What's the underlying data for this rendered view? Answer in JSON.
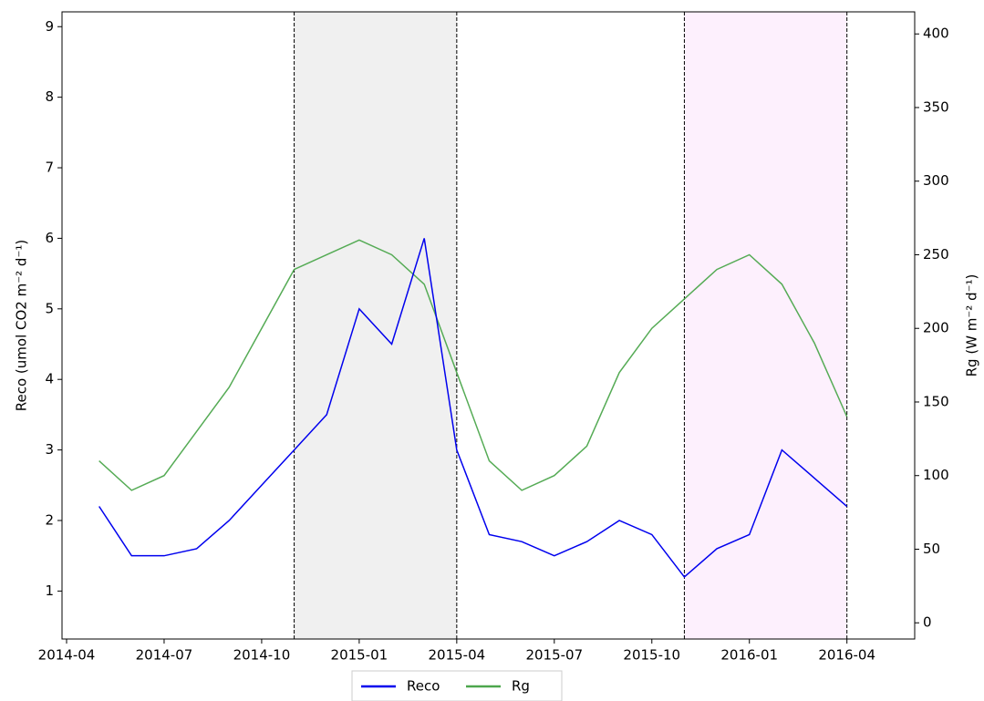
{
  "chart_data": {
    "type": "line",
    "x": [
      "2014-05",
      "2014-06",
      "2014-07",
      "2014-08",
      "2014-09",
      "2014-10",
      "2014-11",
      "2014-12",
      "2015-01",
      "2015-02",
      "2015-03",
      "2015-04",
      "2015-05",
      "2015-06",
      "2015-07",
      "2015-08",
      "2015-09",
      "2015-10",
      "2015-11",
      "2015-12",
      "2016-01",
      "2016-02",
      "2016-03",
      "2016-04"
    ],
    "series": [
      {
        "name": "Reco",
        "color": "#0000ee",
        "values": [
          2.2,
          1.5,
          1.5,
          1.6,
          2.0,
          2.5,
          3.0,
          3.5,
          5.0,
          4.5,
          6.0,
          3.0,
          1.8,
          1.7,
          1.5,
          1.7,
          2.0,
          1.8,
          1.2,
          1.6,
          1.8,
          3.0,
          2.6,
          2.2
        ]
      },
      {
        "name": "Rg",
        "color": "#4ca64c",
        "axis": "y2",
        "values": [
          110,
          90,
          100,
          130,
          160,
          200,
          240,
          250,
          260,
          250,
          230,
          170,
          110,
          90,
          100,
          120,
          170,
          200,
          220,
          240,
          250,
          230,
          190,
          140
        ]
      }
    ],
    "ylabel": "Reco (umol CO2 m⁻² d⁻¹)",
    "y2label": "Rg (W m⁻² d⁻¹)",
    "xlim": [
      "2014-04",
      "2016-06"
    ],
    "xticks": [
      "2014-04",
      "2014-07",
      "2014-10",
      "2015-01",
      "2015-04",
      "2015-07",
      "2015-10",
      "2016-01",
      "2016-04"
    ],
    "ylim": [
      0.32,
      9.21
    ],
    "yticks": [
      1,
      2,
      3,
      4,
      5,
      6,
      7,
      8,
      9
    ],
    "y2lim": [
      -11,
      415
    ],
    "y2ticks": [
      0,
      50,
      100,
      150,
      200,
      250,
      300,
      350,
      400
    ],
    "spans": [
      {
        "start": "2014-11",
        "end": "2015-04",
        "color": "#f0f0f0"
      },
      {
        "start": "2015-11",
        "end": "2016-04",
        "color": "#fdf0fd"
      }
    ],
    "legend": "lower center"
  }
}
